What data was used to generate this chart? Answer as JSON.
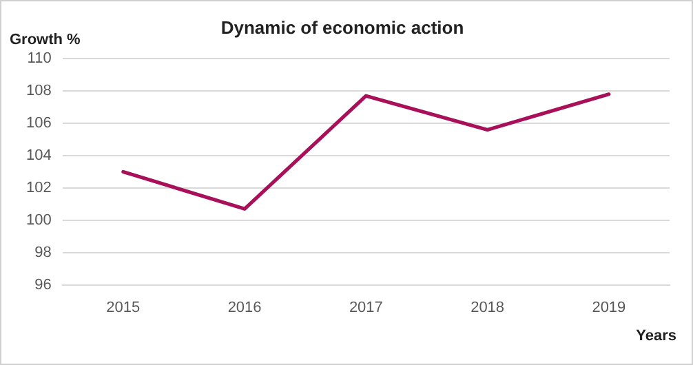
{
  "chart_data": {
    "type": "line",
    "title": "Dynamic of economic action",
    "xlabel": "Years",
    "ylabel": "Growth %",
    "categories": [
      "2015",
      "2016",
      "2017",
      "2018",
      "2019"
    ],
    "series": [
      {
        "color": "#a8105a",
        "values": [
          103,
          100.7,
          107.7,
          105.6,
          107.8
        ]
      }
    ],
    "ylim": [
      96,
      110
    ],
    "yticks": [
      96,
      98,
      100,
      102,
      104,
      106,
      108,
      110
    ],
    "grid": "y",
    "legend": false,
    "marker": "none",
    "line_style": "solid"
  }
}
